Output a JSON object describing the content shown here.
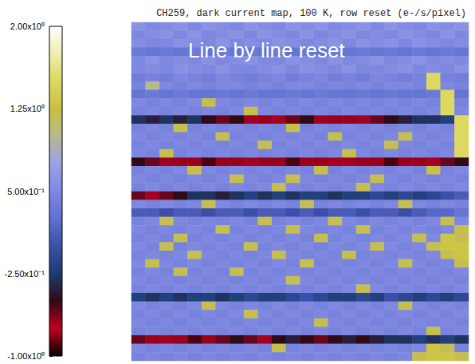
{
  "chart_data": {
    "type": "heatmap",
    "title": "CH259, dark current map, 100 K, row reset (e-/s/pixel)",
    "annotation": "Line by line reset",
    "tick_labels": false,
    "colorbar_range": [
      -1,
      2
    ],
    "colorbar_ticks": [
      {
        "value": -1,
        "label": "-1.00x10⁰"
      },
      {
        "value": -0.25,
        "label": "-2.50x10⁻¹"
      },
      {
        "value": 0.5,
        "label": "5.00x10⁻¹"
      },
      {
        "value": 1.25,
        "label": "1.25x10⁰"
      },
      {
        "value": 2,
        "label": "2.00x10⁰"
      }
    ],
    "cells": [
      [
        0.6,
        0.5,
        0.55,
        0.6,
        0.5,
        0.6,
        0.55,
        0.5,
        0.6,
        0.55,
        0.5,
        0.6,
        0.55,
        0.6,
        0.5,
        0.55,
        0.6,
        0.5,
        0.6,
        0.55,
        0.5,
        0.6,
        0.55,
        0.6
      ],
      [
        0.5,
        0.55,
        0.6,
        0.5,
        0.6,
        0.5,
        0.55,
        0.6,
        0.5,
        0.6,
        0.55,
        0.5,
        0.6,
        0.5,
        0.55,
        0.6,
        0.5,
        0.55,
        0.5,
        0.6,
        0.55,
        0.5,
        0.6,
        0.5
      ],
      [
        0.55,
        0.5,
        0.5,
        0.6,
        0.55,
        0.5,
        0.6,
        0.5,
        0.55,
        0.5,
        0.6,
        0.55,
        0.5,
        0.55,
        0.6,
        0.5,
        0.6,
        0.55,
        0.6,
        0.5,
        0.6,
        0.55,
        0.5,
        0.55
      ],
      [
        0.35,
        0.3,
        0.35,
        0.3,
        0.35,
        0.3,
        0.35,
        0.3,
        0.35,
        0.3,
        0.35,
        0.3,
        0.35,
        0.3,
        0.35,
        0.3,
        0.35,
        0.3,
        0.35,
        0.3,
        0.35,
        0.3,
        0.35,
        0.3
      ],
      [
        0.5,
        0.6,
        0.5,
        0.55,
        0.5,
        0.6,
        0.5,
        0.55,
        0.6,
        0.5,
        0.5,
        0.6,
        0.55,
        0.5,
        0.6,
        0.5,
        0.55,
        0.6,
        0.5,
        0.55,
        0.6,
        0.5,
        0.55,
        0.5
      ],
      [
        0.5,
        0.55,
        0.5,
        0.6,
        0.55,
        0.5,
        0.6,
        0.5,
        0.5,
        0.55,
        0.6,
        0.5,
        0.6,
        0.55,
        0.5,
        0.6,
        0.5,
        0.5,
        0.55,
        0.6,
        0.5,
        0.55,
        0.5,
        0.6
      ],
      [
        0.4,
        0.45,
        0.4,
        0.5,
        0.45,
        0.4,
        0.5,
        0.45,
        0.4,
        0.45,
        0.5,
        0.4,
        0.45,
        0.5,
        0.4,
        0.45,
        0.4,
        0.5,
        0.45,
        0.4,
        0.45,
        1.5,
        0.45,
        0.4
      ],
      [
        0.45,
        1.0,
        0.5,
        0.45,
        0.5,
        0.45,
        0.5,
        0.5,
        0.45,
        0.5,
        0.45,
        0.5,
        0.5,
        0.45,
        0.5,
        0.45,
        0.5,
        0.45,
        0.5,
        0.5,
        0.45,
        1.5,
        0.5,
        0.45
      ],
      [
        0.3,
        0.35,
        0.3,
        0.35,
        0.3,
        0.3,
        0.35,
        0.3,
        0.35,
        0.3,
        0.3,
        0.35,
        0.3,
        0.35,
        0.3,
        0.3,
        0.35,
        0.3,
        0.35,
        0.3,
        0.3,
        0.35,
        1.5,
        0.3
      ],
      [
        0.5,
        0.45,
        0.5,
        0.45,
        0.5,
        1.2,
        0.5,
        0.45,
        0.5,
        0.45,
        0.5,
        0.45,
        0.5,
        0.45,
        0.5,
        0.45,
        0.5,
        0.45,
        0.5,
        0.45,
        0.5,
        0.45,
        1.5,
        0.45
      ],
      [
        0.45,
        0.5,
        0.45,
        0.5,
        0.45,
        0.5,
        0.45,
        0.5,
        1.2,
        0.5,
        0.45,
        0.5,
        0.45,
        0.5,
        0.45,
        0.5,
        0.45,
        0.5,
        0.45,
        0.5,
        0.45,
        0.5,
        1.5,
        0.5
      ],
      [
        -0.3,
        -0.4,
        -0.3,
        -0.4,
        -0.3,
        -0.5,
        -0.6,
        -0.5,
        -0.7,
        -0.8,
        -0.7,
        -0.6,
        -0.5,
        -0.7,
        -0.8,
        -0.8,
        -0.7,
        -0.6,
        -0.5,
        -0.4,
        -0.3,
        -0.3,
        -0.2,
        1.5
      ],
      [
        0.45,
        0.5,
        0.45,
        1.2,
        0.45,
        0.5,
        0.45,
        0.5,
        0.45,
        0.5,
        0.45,
        1.2,
        0.45,
        0.5,
        0.45,
        0.5,
        0.45,
        0.5,
        0.45,
        0.5,
        0.45,
        0.5,
        0.45,
        1.5
      ],
      [
        0.5,
        0.45,
        0.5,
        0.45,
        0.5,
        0.45,
        1.2,
        0.45,
        0.5,
        0.45,
        0.5,
        0.45,
        0.5,
        0.45,
        1.2,
        0.45,
        0.5,
        0.45,
        0.5,
        1.2,
        0.5,
        0.45,
        0.5,
        1.5
      ],
      [
        0.45,
        0.5,
        0.45,
        0.5,
        0.45,
        0.5,
        0.45,
        0.5,
        0.45,
        1.2,
        0.45,
        0.5,
        0.45,
        0.5,
        0.45,
        0.5,
        0.45,
        0.5,
        1.2,
        0.5,
        0.45,
        0.5,
        0.45,
        1.5
      ],
      [
        0.5,
        0.45,
        1.2,
        0.45,
        0.5,
        0.45,
        0.5,
        0.45,
        0.5,
        0.45,
        0.5,
        0.45,
        0.5,
        0.45,
        0.5,
        1.2,
        0.5,
        0.45,
        0.5,
        0.45,
        0.5,
        0.45,
        0.5,
        1.5
      ],
      [
        -0.5,
        -0.6,
        -0.7,
        -0.8,
        -0.8,
        -0.9,
        -0.8,
        -0.8,
        -0.7,
        -0.8,
        -0.8,
        -0.9,
        -0.8,
        -0.8,
        -0.7,
        -0.7,
        -0.8,
        -0.8,
        -0.9,
        -0.8,
        -0.8,
        -0.7,
        -0.6,
        -0.5
      ],
      [
        0.45,
        0.5,
        0.45,
        0.5,
        1.2,
        0.5,
        0.45,
        0.5,
        0.45,
        0.5,
        0.45,
        0.5,
        0.45,
        1.2,
        0.45,
        0.5,
        0.45,
        0.5,
        0.45,
        0.5,
        0.45,
        1.2,
        0.45,
        0.5
      ],
      [
        0.5,
        0.45,
        0.5,
        0.45,
        0.5,
        0.45,
        0.5,
        1.2,
        0.5,
        0.45,
        0.5,
        1.2,
        0.5,
        0.45,
        0.5,
        0.45,
        0.5,
        1.2,
        0.5,
        0.45,
        0.5,
        0.45,
        0.5,
        0.45
      ],
      [
        0.45,
        0.5,
        0.45,
        0.5,
        0.45,
        0.5,
        0.45,
        0.5,
        0.45,
        0.5,
        1.2,
        0.5,
        0.45,
        0.5,
        0.45,
        0.5,
        1.2,
        0.5,
        0.45,
        0.5,
        0.45,
        0.5,
        0.45,
        0.5
      ],
      [
        -0.6,
        -0.7,
        -0.6,
        -0.5,
        -0.3,
        -0.3,
        -0.4,
        -0.3,
        -0.2,
        -0.3,
        -0.2,
        -0.3,
        -0.2,
        -0.2,
        -0.3,
        -0.2,
        -0.2,
        -0.1,
        -0.2,
        -0.1,
        -0.2,
        -0.1,
        0.0,
        0.1
      ],
      [
        0.5,
        0.45,
        0.5,
        0.45,
        0.5,
        1.2,
        0.5,
        0.45,
        0.5,
        0.45,
        0.5,
        0.45,
        1.2,
        0.45,
        0.5,
        0.45,
        0.5,
        0.45,
        0.5,
        1.2,
        0.5,
        0.45,
        0.5,
        0.45
      ],
      [
        0.1,
        0.1,
        0.0,
        0.1,
        0.1,
        0.0,
        0.1,
        0.1,
        0.0,
        0.1,
        0.1,
        0.0,
        0.1,
        0.0,
        0.1,
        0.1,
        0.0,
        0.1,
        0.1,
        0.0,
        0.1,
        0.2,
        0.2,
        0.3
      ],
      [
        0.45,
        0.5,
        1.2,
        0.5,
        0.45,
        0.5,
        0.45,
        0.5,
        0.45,
        1.2,
        0.45,
        0.5,
        0.45,
        0.5,
        1.2,
        0.5,
        0.45,
        0.5,
        0.45,
        0.5,
        0.45,
        0.5,
        1.2,
        0.5
      ],
      [
        0.5,
        0.45,
        0.5,
        0.45,
        0.5,
        0.45,
        1.2,
        0.45,
        0.5,
        0.45,
        0.5,
        1.2,
        0.5,
        0.45,
        0.5,
        0.45,
        1.2,
        0.45,
        0.5,
        0.45,
        0.5,
        0.45,
        0.5,
        1.2
      ],
      [
        0.45,
        0.5,
        0.45,
        1.2,
        0.45,
        0.5,
        0.45,
        0.5,
        0.45,
        0.5,
        0.45,
        0.5,
        0.45,
        1.2,
        0.45,
        0.5,
        0.45,
        0.5,
        0.45,
        0.5,
        1.2,
        0.5,
        1.3,
        1.2
      ],
      [
        0.5,
        0.45,
        1.2,
        0.45,
        0.5,
        0.45,
        0.5,
        0.45,
        1.2,
        0.45,
        0.5,
        0.45,
        0.5,
        0.45,
        0.5,
        0.45,
        0.5,
        1.2,
        0.5,
        0.45,
        0.5,
        1.2,
        1.3,
        1.3
      ],
      [
        0.45,
        0.5,
        0.45,
        0.5,
        1.2,
        0.5,
        0.45,
        0.5,
        0.45,
        0.5,
        1.2,
        0.5,
        0.45,
        0.5,
        0.45,
        1.2,
        0.45,
        0.5,
        0.45,
        0.5,
        0.45,
        0.5,
        1.2,
        1.3
      ],
      [
        0.5,
        1.2,
        0.5,
        0.45,
        0.5,
        0.45,
        0.5,
        0.45,
        0.5,
        0.45,
        0.5,
        0.45,
        1.2,
        0.45,
        0.5,
        0.45,
        0.5,
        0.45,
        0.5,
        1.2,
        0.5,
        0.45,
        0.5,
        1.2
      ],
      [
        0.45,
        0.5,
        0.45,
        1.2,
        0.45,
        0.5,
        0.45,
        1.2,
        0.45,
        0.5,
        0.45,
        0.5,
        0.45,
        0.5,
        0.45,
        0.5,
        0.45,
        0.5,
        0.45,
        0.5,
        0.45,
        0.5,
        0.45,
        0.5
      ],
      [
        0.5,
        0.45,
        0.5,
        0.45,
        0.5,
        0.45,
        0.5,
        0.45,
        0.5,
        0.45,
        0.5,
        1.2,
        0.5,
        0.45,
        0.5,
        0.45,
        0.5,
        0.45,
        0.5,
        0.45,
        0.5,
        0.45,
        0.5,
        0.45
      ],
      [
        0.45,
        0.5,
        0.45,
        0.5,
        0.45,
        0.5,
        0.45,
        0.5,
        0.45,
        0.5,
        0.45,
        0.5,
        0.45,
        0.5,
        0.45,
        0.5,
        1.2,
        0.5,
        0.45,
        0.5,
        0.45,
        0.5,
        0.45,
        0.5
      ],
      [
        -0.2,
        -0.3,
        -0.2,
        -0.3,
        -0.2,
        -0.2,
        -0.3,
        -0.2,
        -0.1,
        -0.2,
        -0.2,
        -0.1,
        0.0,
        -0.1,
        -0.2,
        -0.2,
        -0.1,
        -0.2,
        0.0,
        -0.1,
        -0.2,
        -0.1,
        -0.2,
        -0.1
      ],
      [
        0.5,
        0.45,
        0.5,
        0.45,
        0.5,
        1.2,
        0.5,
        0.45,
        0.5,
        0.45,
        0.5,
        0.45,
        0.5,
        0.45,
        0.5,
        0.45,
        0.5,
        0.45,
        0.5,
        1.2,
        0.5,
        0.45,
        0.5,
        0.45
      ],
      [
        0.45,
        0.5,
        0.45,
        0.5,
        0.45,
        0.5,
        0.45,
        0.5,
        1.2,
        0.5,
        0.45,
        0.5,
        0.45,
        0.5,
        0.45,
        0.5,
        0.45,
        0.5,
        0.45,
        0.5,
        0.45,
        0.5,
        0.45,
        0.5
      ],
      [
        0.5,
        0.45,
        0.5,
        0.45,
        0.5,
        0.45,
        0.5,
        0.45,
        0.5,
        0.45,
        0.5,
        0.45,
        0.5,
        1.2,
        0.5,
        0.45,
        0.5,
        0.45,
        0.5,
        0.45,
        0.5,
        0.45,
        0.5,
        0.45
      ],
      [
        0.45,
        0.5,
        0.45,
        0.5,
        0.45,
        0.5,
        0.45,
        0.5,
        0.45,
        0.5,
        0.45,
        0.5,
        0.45,
        0.5,
        0.45,
        0.5,
        0.45,
        0.5,
        0.45,
        0.5,
        0.45,
        1.2,
        0.45,
        0.5
      ],
      [
        -0.6,
        -0.8,
        -0.7,
        -0.8,
        -0.9,
        -0.8,
        -0.6,
        -0.5,
        -0.6,
        -0.7,
        -0.5,
        -0.4,
        -0.5,
        -0.6,
        -0.5,
        -0.4,
        -0.5,
        -0.4,
        -0.3,
        -0.3,
        -0.2,
        -0.3,
        -0.2,
        -0.3
      ],
      [
        0.5,
        0.45,
        0.5,
        0.45,
        0.5,
        0.45,
        0.5,
        0.45,
        0.5,
        0.45,
        1.2,
        0.45,
        0.5,
        0.45,
        0.5,
        0.45,
        0.5,
        0.45,
        0.5,
        0.45,
        0.5,
        1.3,
        1.2,
        0.45
      ],
      [
        0.45,
        0.5,
        0.45,
        0.5,
        0.45,
        0.5,
        0.45,
        0.5,
        0.45,
        0.5,
        0.45,
        0.5,
        0.45,
        0.5,
        0.45,
        0.5,
        0.45,
        0.5,
        0.45,
        0.5,
        1.2,
        1.3,
        1.3,
        1.2
      ]
    ]
  }
}
